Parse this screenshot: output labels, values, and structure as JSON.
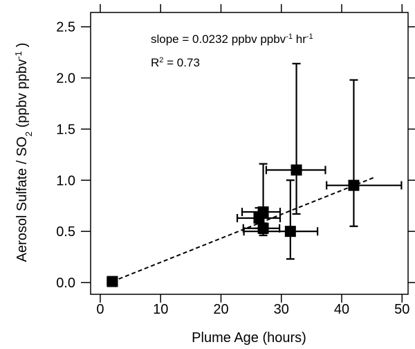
{
  "chart_data": {
    "type": "scatter",
    "x_label": "Plume Age (hours)",
    "y_label": [
      {
        "text": "Aerosol Sulfate / SO"
      },
      {
        "text": "2",
        "shift": "sub"
      },
      {
        "text": "  (ppbv ppbv"
      },
      {
        "text": "-1",
        "shift": "super"
      },
      {
        "text": " )"
      }
    ],
    "annotations": [
      [
        {
          "text": "slope = 0.0232 ppbv ppbv"
        },
        {
          "text": "-1",
          "shift": "super"
        },
        {
          "text": " hr"
        },
        {
          "text": "-1",
          "shift": "super"
        }
      ],
      [
        {
          "text": "R"
        },
        {
          "text": "2",
          "shift": "super"
        },
        {
          "text": " = 0.73"
        }
      ]
    ],
    "series": [
      {
        "color": "#000000",
        "x": [
          2.0,
          26.3,
          27.0,
          27.0,
          31.5,
          32.5,
          42.0
        ],
        "values": [
          0.01,
          0.63,
          0.69,
          0.53,
          0.5,
          1.1,
          0.95
        ],
        "xerr_minus": [
          0.8,
          3.6,
          3.5,
          3.3,
          7.7,
          5.0,
          4.5
        ],
        "xerr_plus": [
          0.8,
          3.5,
          2.8,
          2.7,
          4.5,
          4.8,
          7.9
        ],
        "yerr_minus": [
          0.02,
          0.1,
          0.23,
          0.05,
          0.27,
          0.43,
          0.4
        ],
        "yerr_plus": [
          0.02,
          0.1,
          0.47,
          0.05,
          0.5,
          1.04,
          1.03
        ]
      }
    ],
    "fit": {
      "x": [
        2.0,
        45.5
      ],
      "values": [
        0.01,
        1.03
      ],
      "color": "#000000",
      "dash": true
    },
    "xlim": [
      -1.6,
      51
    ],
    "ylim": [
      -0.115,
      2.64
    ],
    "xticks": [
      0,
      10,
      20,
      30,
      40,
      50
    ],
    "yticks": [
      {
        "value": 0,
        "label": "0.0"
      },
      0.5,
      {
        "value": 1,
        "label": "1.0"
      },
      1.5,
      {
        "value": 2,
        "label": "2.0"
      },
      2.5
    ],
    "mirror_ticks": true
  }
}
